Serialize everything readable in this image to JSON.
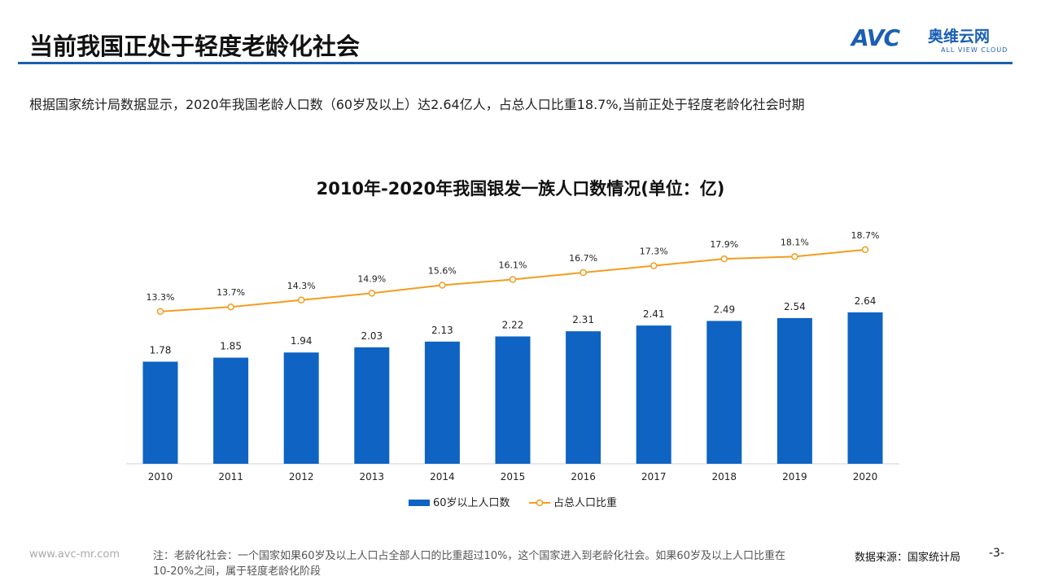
{
  "header": {
    "title": "当前我国正处于轻度老龄化社会",
    "logo": {
      "main": "AVC",
      "cn": "奥维云网",
      "en": "ALL VIEW CLOUD"
    }
  },
  "subtitle": "根据国家统计局数据显示，2020年我国老龄人口数（60岁及以上）达2.64亿人，占总人口比重18.7%,当前正处于轻度老龄化社会时期",
  "colors": {
    "bar": "#0e63c3",
    "line": "#f39c1f",
    "accent": "#1a5fb4"
  },
  "chart_data": {
    "type": "bar+line",
    "title": "2010年-2020年我国银发一族人口数情况(单位：亿)",
    "categories": [
      "2010",
      "2011",
      "2012",
      "2013",
      "2014",
      "2015",
      "2016",
      "2017",
      "2018",
      "2019",
      "2020"
    ],
    "series": [
      {
        "name": "60岁以上人口数",
        "type": "bar",
        "values": [
          1.78,
          1.85,
          1.94,
          2.03,
          2.13,
          2.22,
          2.31,
          2.41,
          2.49,
          2.54,
          2.64
        ],
        "labels": [
          "1.78",
          "1.85",
          "1.94",
          "2.03",
          "2.13",
          "2.22",
          "2.31",
          "2.41",
          "2.49",
          "2.54",
          "2.64"
        ]
      },
      {
        "name": "占总人口比重",
        "type": "line",
        "values": [
          13.3,
          13.7,
          14.3,
          14.9,
          15.6,
          16.1,
          16.7,
          17.3,
          17.9,
          18.1,
          18.7
        ],
        "labels": [
          "13.3%",
          "13.7%",
          "14.3%",
          "14.9%",
          "15.6%",
          "16.1%",
          "16.7%",
          "17.3%",
          "17.9%",
          "18.1%",
          "18.7%"
        ]
      }
    ],
    "legend": "bottom",
    "grid": false
  },
  "footer": {
    "url": "www.avc-mr.com",
    "note": "注：老龄化社会：一个国家如果60岁及以上人口占全部人口的比重超过10%，这个国家进入到老龄化社会。如果60岁及以上人口比重在10-20%之间，属于轻度老龄化阶段",
    "source": "数据来源：国家统计局",
    "page": "-3-"
  }
}
